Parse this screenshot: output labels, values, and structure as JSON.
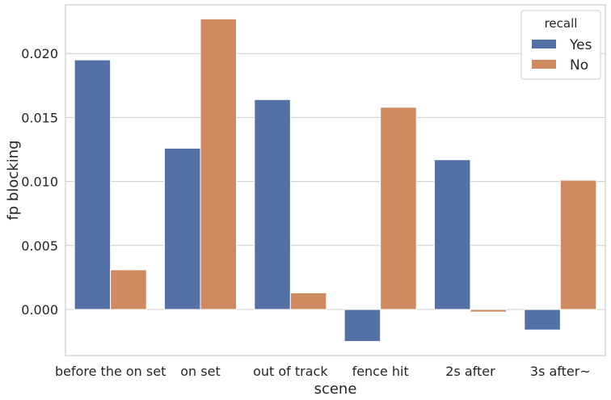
{
  "chart_data": {
    "type": "bar",
    "xlabel": "scene",
    "ylabel": "fp blocking",
    "categories": [
      "before the on set",
      "on set",
      "out of track",
      "fence hit",
      "2s after",
      "3s after~"
    ],
    "series": [
      {
        "name": "Yes",
        "color": "#5471a5",
        "values": [
          0.0195,
          0.0126,
          0.0164,
          -0.0025,
          0.0117,
          -0.0016
        ]
      },
      {
        "name": "No",
        "color": "#d08a61",
        "values": [
          0.0031,
          0.0227,
          0.0013,
          0.0158,
          -0.0002,
          0.0101
        ]
      }
    ],
    "ylim": [
      -0.0036,
      0.0238
    ],
    "yticks": [
      "0.000",
      "0.005",
      "0.010",
      "0.015",
      "0.020"
    ],
    "grid": true,
    "legend": {
      "title": "recall",
      "placement": "top-right"
    }
  }
}
